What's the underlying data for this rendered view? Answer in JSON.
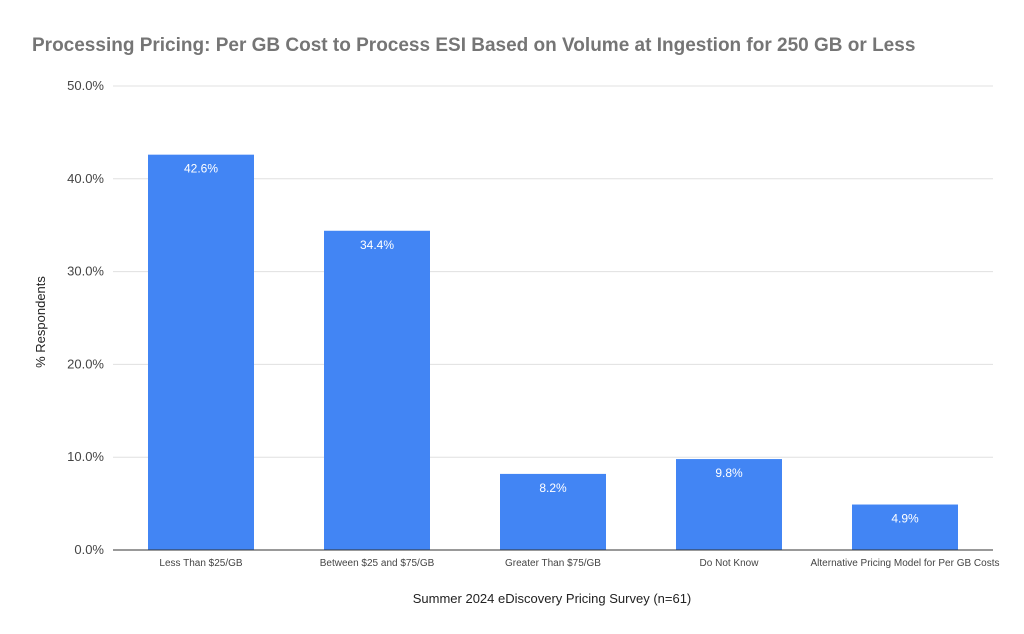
{
  "chart_data": {
    "type": "bar",
    "title": "Processing Pricing: Per GB Cost to Process ESI Based on Volume at Ingestion for 250 GB or Less",
    "xlabel": "Summer 2024 eDiscovery Pricing Survey (n=61)",
    "ylabel": "% Respondents",
    "categories": [
      "Less Than $25/GB",
      "Between $25 and $75/GB",
      "Greater Than $75/GB",
      "Do Not Know",
      "Alternative Pricing Model for Per GB Costs"
    ],
    "values": [
      42.6,
      34.4,
      8.2,
      9.8,
      4.9
    ],
    "value_labels": [
      "42.6%",
      "34.4%",
      "8.2%",
      "9.8%",
      "4.9%"
    ],
    "ylim": [
      0,
      50
    ],
    "yticks": [
      0,
      10,
      20,
      30,
      40,
      50
    ],
    "ytick_labels": [
      "0.0%",
      "10.0%",
      "20.0%",
      "30.0%",
      "40.0%",
      "50.0%"
    ],
    "grid": true,
    "bar_color": "#4285f4"
  }
}
